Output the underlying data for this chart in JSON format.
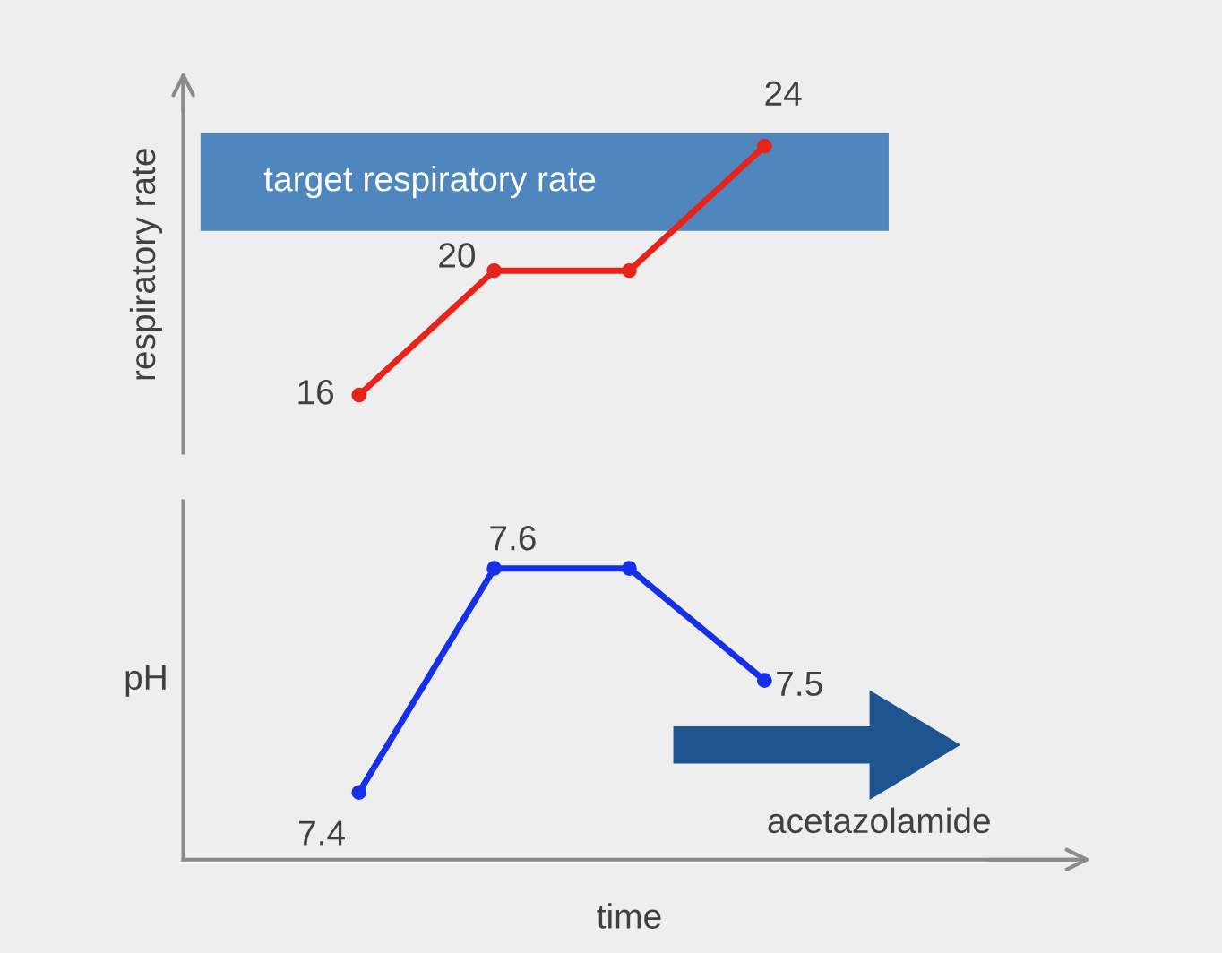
{
  "chart_data": [
    {
      "type": "line",
      "ylabel": "respiratory rate",
      "categories": [
        null,
        null,
        null,
        null
      ],
      "series": [
        {
          "color": "#e8231a",
          "values": [
            16,
            20,
            20,
            24
          ],
          "value_labels": [
            "16",
            "20",
            null,
            "24"
          ]
        }
      ],
      "tick_labels": false,
      "grid": false,
      "legend": false,
      "marker": "circle",
      "line_style": "solid",
      "bands": [
        {
          "axis": "y",
          "from": 21.3,
          "to": 24.4,
          "label": "target respiratory rate",
          "color": "#4f86bd"
        }
      ]
    },
    {
      "type": "line",
      "ylabel": "pH",
      "xlabel": "time",
      "categories": [
        null,
        null,
        null,
        null
      ],
      "series": [
        {
          "color": "#1530e8",
          "values": [
            7.4,
            7.6,
            7.6,
            7.5
          ],
          "value_labels": [
            "7.4",
            "7.6",
            null,
            "7.5"
          ]
        }
      ],
      "tick_labels": false,
      "grid": false,
      "legend": false,
      "marker": "circle",
      "line_style": "solid",
      "annotations": [
        "acetazolamide"
      ]
    }
  ]
}
